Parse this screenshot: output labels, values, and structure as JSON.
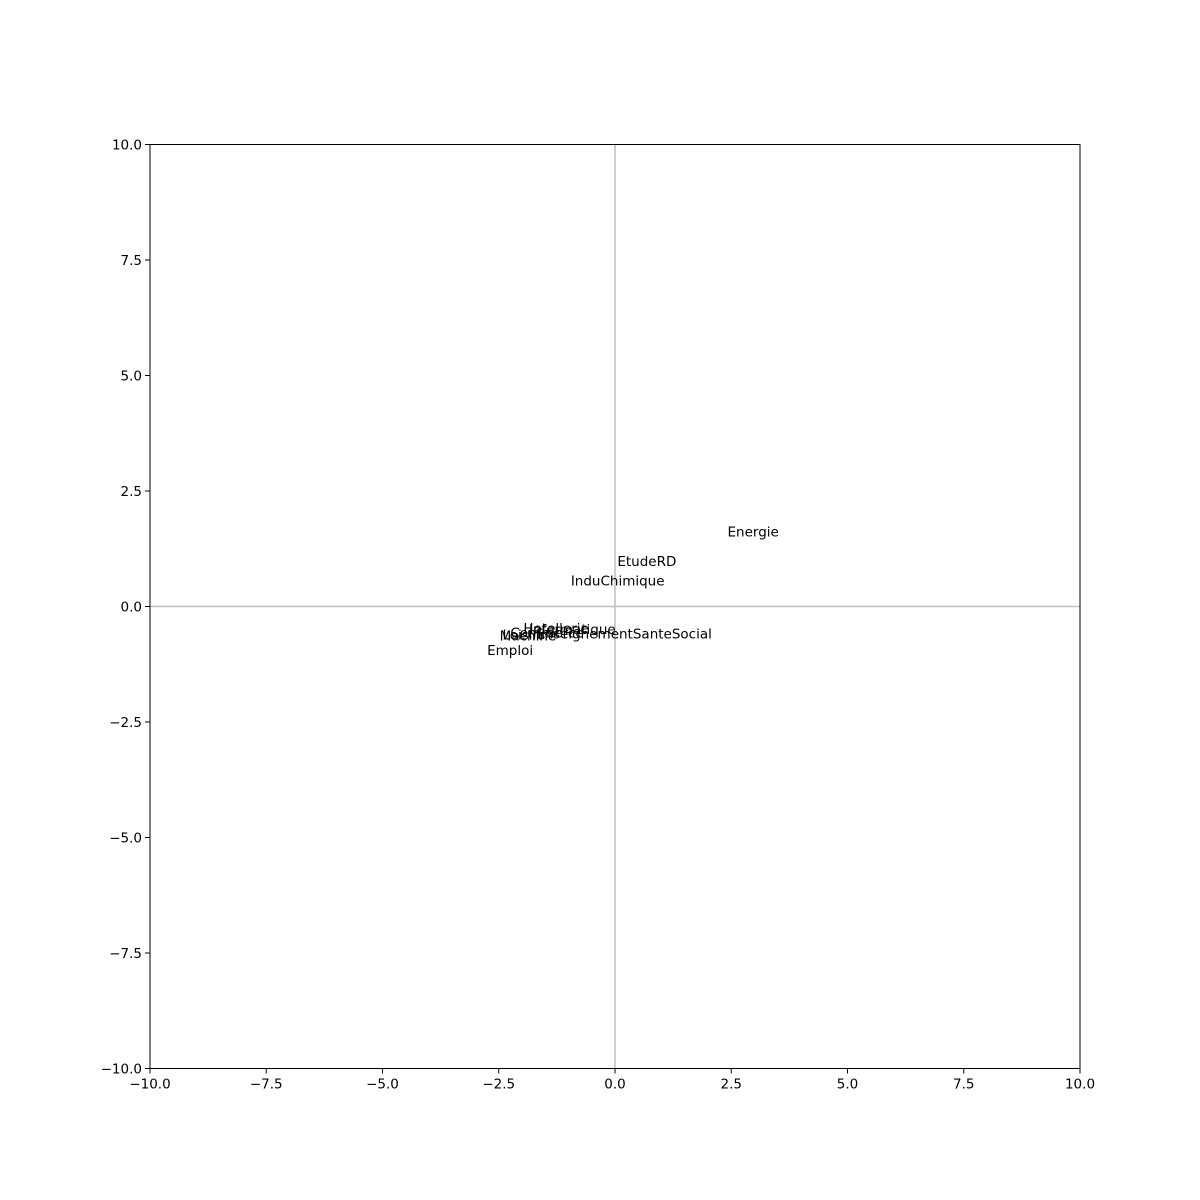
{
  "chart_data": {
    "type": "scatter",
    "title": "",
    "xlabel": "",
    "ylabel": "",
    "xlim": [
      -10.0,
      10.0
    ],
    "ylim": [
      -10.0,
      10.0
    ],
    "xticks": [
      "−10.0",
      "−7.5",
      "−5.0",
      "−2.5",
      "0.0",
      "2.5",
      "5.0",
      "7.5",
      "10.0"
    ],
    "yticks": [
      "−10.0",
      "−7.5",
      "−5.0",
      "−2.5",
      "0.0",
      "2.5",
      "5.0",
      "7.5",
      "10.0"
    ],
    "xtick_values": [
      -10.0,
      -7.5,
      -5.0,
      -2.5,
      0.0,
      2.5,
      5.0,
      7.5,
      10.0
    ],
    "ytick_values": [
      -10.0,
      -7.5,
      -5.0,
      -2.5,
      0.0,
      2.5,
      5.0,
      7.5,
      10.0
    ],
    "grid": false,
    "reference_lines": {
      "x": 0.0,
      "y": 0.0,
      "color": "#bfbfbf"
    },
    "points": [
      {
        "label": "Energie",
        "x": 2.42,
        "y": 1.51
      },
      {
        "label": "EtudeRD",
        "x": 0.05,
        "y": 0.88
      },
      {
        "label": "InduChimique",
        "x": -0.95,
        "y": 0.45
      },
      {
        "label": "Hotellerie",
        "x": -1.97,
        "y": -0.57
      },
      {
        "label": "Informatique",
        "x": -1.85,
        "y": -0.6
      },
      {
        "label": "EnseignementSanteSocial",
        "x": -1.7,
        "y": -0.69
      },
      {
        "label": "Commerce",
        "x": -2.25,
        "y": -0.67
      },
      {
        "label": "Machine",
        "x": -2.48,
        "y": -0.74
      },
      {
        "label": "Loisirs",
        "x": -2.42,
        "y": -0.71
      },
      {
        "label": "Emploi",
        "x": -2.75,
        "y": -1.05
      }
    ]
  }
}
